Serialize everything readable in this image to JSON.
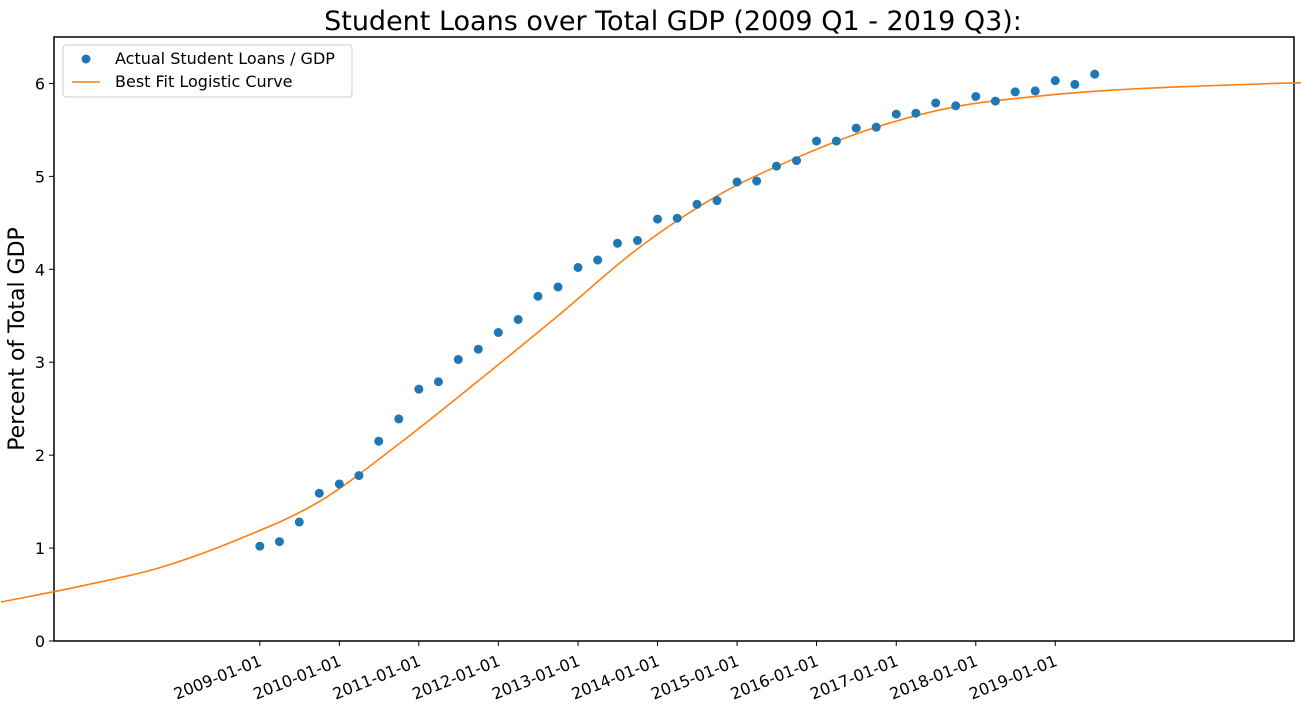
{
  "chart_data": {
    "type": "scatter",
    "title": "Student Loans over Total GDP (2009 Q1 - 2019 Q3):",
    "xlabel": "",
    "ylabel": "Percent of Total GDP",
    "x_ticks": [
      "2009-01-01",
      "2010-01-01",
      "2011-01-01",
      "2012-01-01",
      "2013-01-01",
      "2014-01-01",
      "2015-01-01",
      "2016-01-01",
      "2017-01-01",
      "2018-01-01",
      "2019-01-01"
    ],
    "y_ticks": [
      0,
      1,
      2,
      3,
      4,
      5,
      6
    ],
    "xlim": [
      "2006-06-01",
      "2022-01-01"
    ],
    "ylim": [
      0,
      6.5
    ],
    "grid": false,
    "legend_position": "upper-left",
    "series": [
      {
        "name": "Actual Student Loans / GDP",
        "kind": "scatter",
        "color": "#1f77b4",
        "points": [
          {
            "x": "2009-01-01",
            "y": 1.02
          },
          {
            "x": "2009-04-01",
            "y": 1.07
          },
          {
            "x": "2009-07-01",
            "y": 1.28
          },
          {
            "x": "2009-10-01",
            "y": 1.59
          },
          {
            "x": "2010-01-01",
            "y": 1.69
          },
          {
            "x": "2010-04-01",
            "y": 1.78
          },
          {
            "x": "2010-07-01",
            "y": 2.15
          },
          {
            "x": "2010-10-01",
            "y": 2.39
          },
          {
            "x": "2011-01-01",
            "y": 2.71
          },
          {
            "x": "2011-04-01",
            "y": 2.79
          },
          {
            "x": "2011-07-01",
            "y": 3.03
          },
          {
            "x": "2011-10-01",
            "y": 3.14
          },
          {
            "x": "2012-01-01",
            "y": 3.32
          },
          {
            "x": "2012-04-01",
            "y": 3.46
          },
          {
            "x": "2012-07-01",
            "y": 3.71
          },
          {
            "x": "2012-10-01",
            "y": 3.81
          },
          {
            "x": "2013-01-01",
            "y": 4.02
          },
          {
            "x": "2013-04-01",
            "y": 4.1
          },
          {
            "x": "2013-07-01",
            "y": 4.28
          },
          {
            "x": "2013-10-01",
            "y": 4.31
          },
          {
            "x": "2014-01-01",
            "y": 4.54
          },
          {
            "x": "2014-04-01",
            "y": 4.55
          },
          {
            "x": "2014-07-01",
            "y": 4.7
          },
          {
            "x": "2014-10-01",
            "y": 4.74
          },
          {
            "x": "2015-01-01",
            "y": 4.94
          },
          {
            "x": "2015-04-01",
            "y": 4.95
          },
          {
            "x": "2015-07-01",
            "y": 5.11
          },
          {
            "x": "2015-10-01",
            "y": 5.17
          },
          {
            "x": "2016-01-01",
            "y": 5.38
          },
          {
            "x": "2016-04-01",
            "y": 5.38
          },
          {
            "x": "2016-07-01",
            "y": 5.52
          },
          {
            "x": "2016-10-01",
            "y": 5.53
          },
          {
            "x": "2017-01-01",
            "y": 5.67
          },
          {
            "x": "2017-04-01",
            "y": 5.68
          },
          {
            "x": "2017-07-01",
            "y": 5.79
          },
          {
            "x": "2017-10-01",
            "y": 5.76
          },
          {
            "x": "2018-01-01",
            "y": 5.86
          },
          {
            "x": "2018-04-01",
            "y": 5.81
          },
          {
            "x": "2018-07-01",
            "y": 5.91
          },
          {
            "x": "2018-10-01",
            "y": 5.92
          },
          {
            "x": "2019-01-01",
            "y": 6.03
          },
          {
            "x": "2019-04-01",
            "y": 5.99
          },
          {
            "x": "2019-07-01",
            "y": 6.1
          }
        ]
      },
      {
        "name": "Best Fit Logistic Curve",
        "kind": "line",
        "color": "#ff7f0e",
        "points": [
          {
            "x": "2005-10-01",
            "y": 0.42
          },
          {
            "x": "2006-10-01",
            "y": 0.59
          },
          {
            "x": "2007-10-01",
            "y": 0.79
          },
          {
            "x": "2008-10-01",
            "y": 1.1
          },
          {
            "x": "2009-10-01",
            "y": 1.5
          },
          {
            "x": "2010-10-01",
            "y": 2.12
          },
          {
            "x": "2011-10-01",
            "y": 2.8
          },
          {
            "x": "2012-10-01",
            "y": 3.5
          },
          {
            "x": "2013-10-01",
            "y": 4.22
          },
          {
            "x": "2014-10-01",
            "y": 4.79
          },
          {
            "x": "2015-10-01",
            "y": 5.2
          },
          {
            "x": "2016-10-01",
            "y": 5.53
          },
          {
            "x": "2017-10-01",
            "y": 5.75
          },
          {
            "x": "2018-10-01",
            "y": 5.86
          },
          {
            "x": "2019-10-01",
            "y": 5.93
          },
          {
            "x": "2020-10-01",
            "y": 5.97
          },
          {
            "x": "2021-10-01",
            "y": 6.0
          },
          {
            "x": "2022-10-01",
            "y": 6.02
          }
        ]
      }
    ]
  }
}
